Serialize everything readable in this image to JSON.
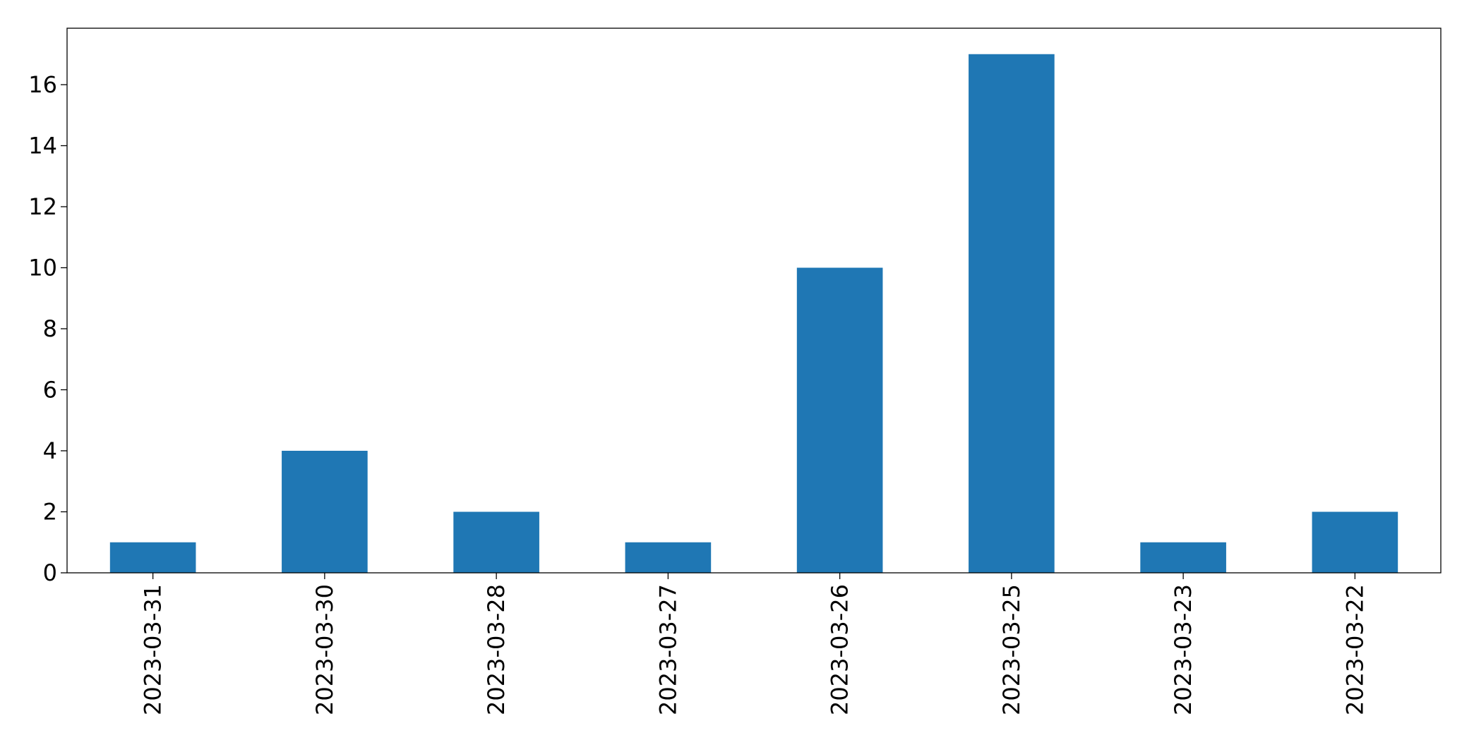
{
  "chart_data": {
    "type": "bar",
    "categories": [
      "2023-03-31",
      "2023-03-30",
      "2023-03-28",
      "2023-03-27",
      "2023-03-26",
      "2023-03-25",
      "2023-03-23",
      "2023-03-22"
    ],
    "values": [
      1,
      4,
      2,
      1,
      10,
      17,
      1,
      2
    ],
    "title": "",
    "xlabel": "",
    "ylabel": "",
    "ylim": [
      0,
      17.85
    ],
    "yticks": [
      0,
      2,
      4,
      6,
      8,
      10,
      12,
      14,
      16
    ],
    "grid": false,
    "legend": "none",
    "bar_color": "#1f77b4",
    "axis_color": "#000000",
    "x_tick_rotation": "vertical"
  }
}
